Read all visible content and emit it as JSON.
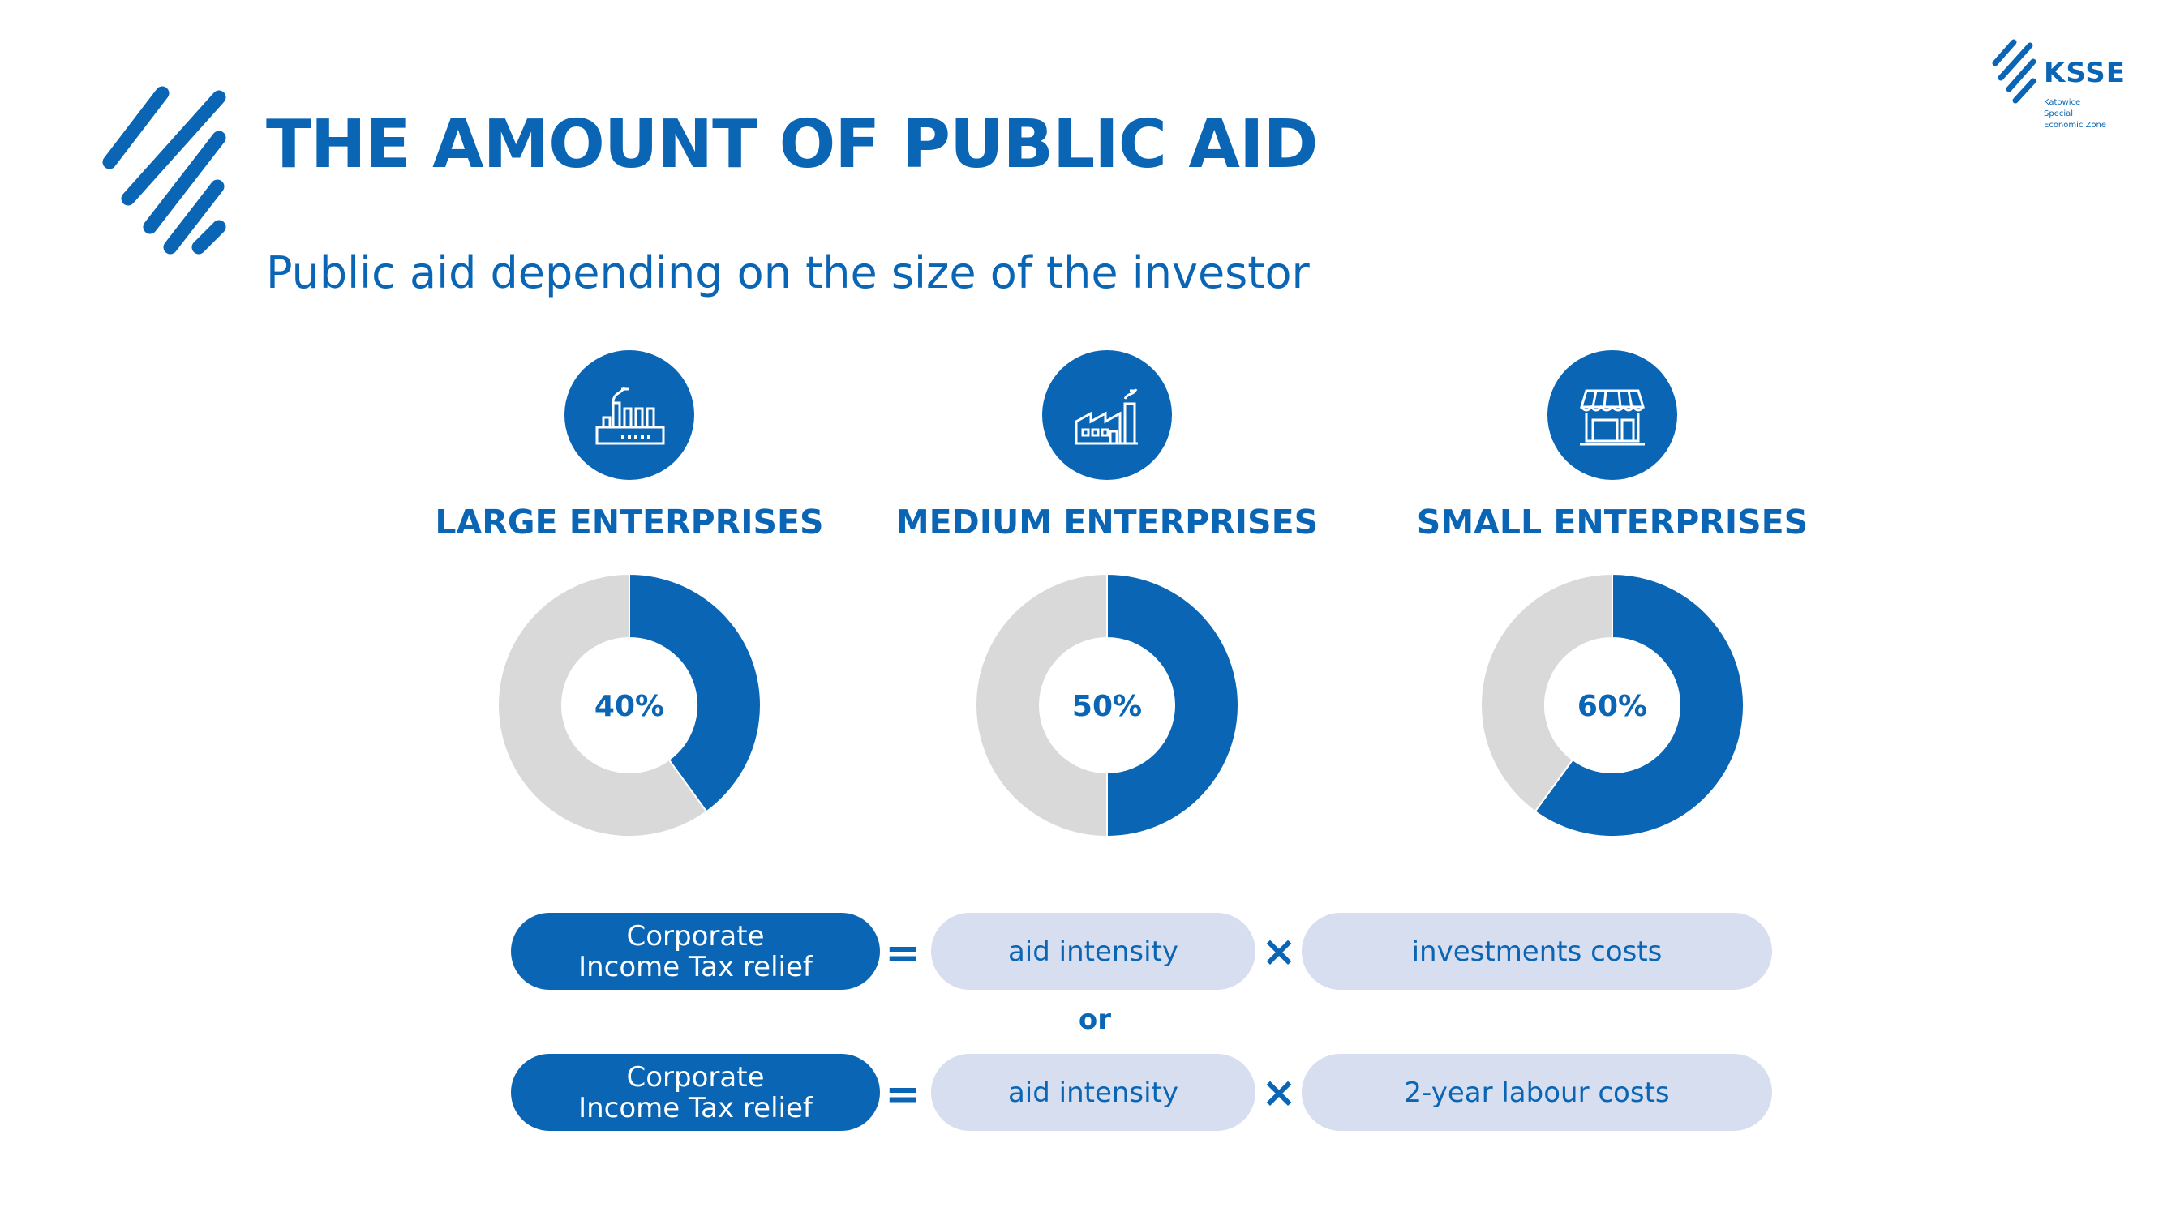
{
  "header": {
    "title": "THE AMOUNT OF PUBLIC AID",
    "subtitle": "Public aid depending on the size of the investor"
  },
  "logo": {
    "name": "KSSE",
    "lines": [
      "Katowice",
      "Special",
      "Economic Zone"
    ]
  },
  "colors": {
    "accent": "#0a65b4",
    "remainder": "#d9d9d9",
    "pill_light": "#d6deef"
  },
  "categories": [
    {
      "label": "LARGE ENTERPRISES",
      "icon": "industrial-plant-icon"
    },
    {
      "label": "MEDIUM ENTERPRISES",
      "icon": "factory-icon"
    },
    {
      "label": "SMALL ENTERPRISES",
      "icon": "shop-icon"
    }
  ],
  "chart_data": {
    "type": "pie",
    "donut": true,
    "categories": [
      "LARGE ENTERPRISES",
      "MEDIUM ENTERPRISES",
      "SMALL ENTERPRISES"
    ],
    "values": [
      40,
      50,
      60
    ],
    "value_labels": [
      "40%",
      "50%",
      "60%"
    ],
    "max": 100,
    "colors": {
      "value": "#0a65b4",
      "remainder": "#d9d9d9"
    }
  },
  "formulas": {
    "rows": [
      {
        "result": "Corporate Income Tax relief",
        "equals": "=",
        "factor1": "aid intensity",
        "times": "×",
        "factor2": "investments costs"
      },
      {
        "result": "Corporate Income Tax relief",
        "equals": "=",
        "factor1": "aid intensity",
        "times": "×",
        "factor2": "2-year labour costs"
      }
    ],
    "separator": "or"
  }
}
